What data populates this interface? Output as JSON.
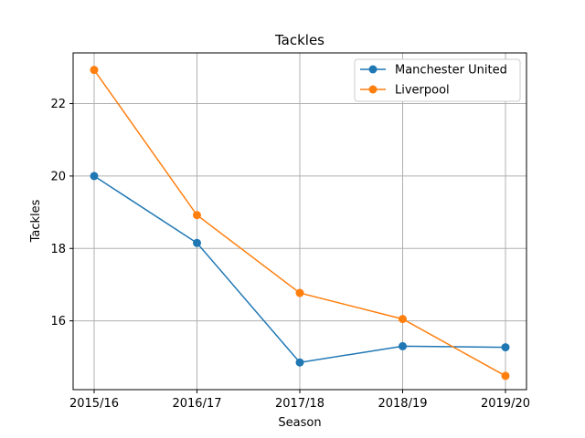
{
  "chart_data": {
    "type": "line",
    "title": "Tackles",
    "xlabel": "Season",
    "ylabel": "Tackles",
    "categories": [
      "2015/16",
      "2016/17",
      "2017/18",
      "2018/19",
      "2019/20"
    ],
    "ylim": [
      14.1,
      23.4
    ],
    "yticks": [
      16,
      18,
      20,
      22
    ],
    "grid": true,
    "legend_position": "top-right",
    "series": [
      {
        "name": "Manchester United",
        "color": "#1f77b4",
        "values": [
          20.0,
          18.15,
          14.85,
          15.3,
          15.27
        ]
      },
      {
        "name": "Liverpool",
        "color": "#ff7f0e",
        "values": [
          22.93,
          18.92,
          16.77,
          16.05,
          14.48
        ]
      }
    ]
  }
}
